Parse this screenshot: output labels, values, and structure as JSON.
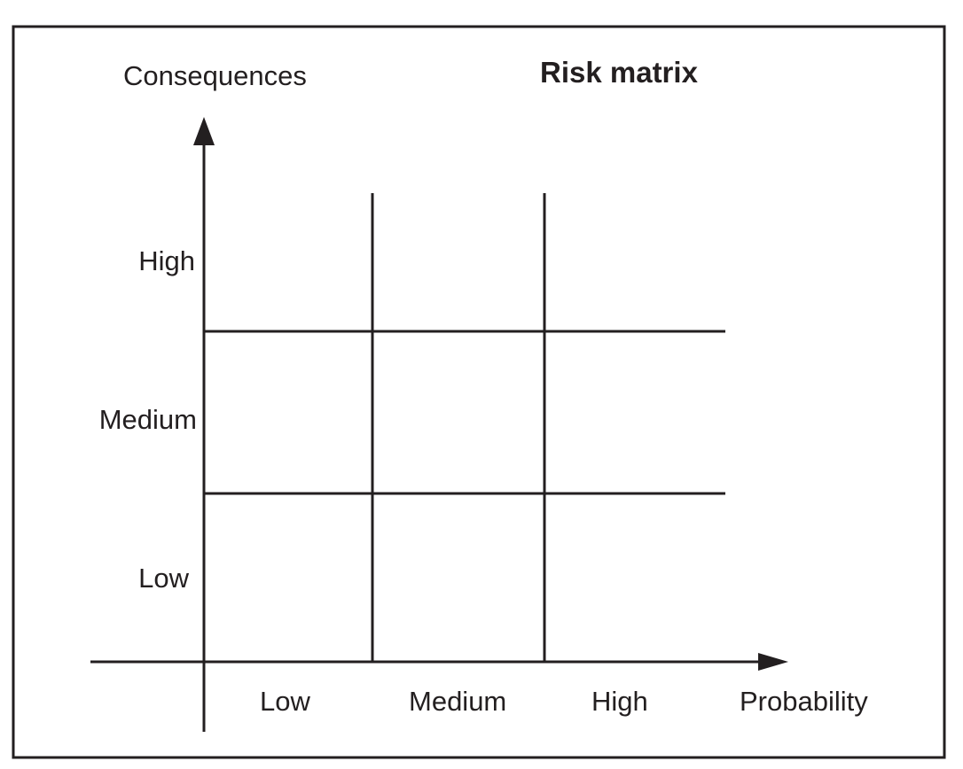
{
  "title": "Risk matrix",
  "y_axis": {
    "label": "Consequences",
    "levels": [
      "Low",
      "Medium",
      "High"
    ]
  },
  "x_axis": {
    "label": "Probability",
    "levels": [
      "Low",
      "Medium",
      "High"
    ]
  },
  "colors": {
    "line": "#231f20",
    "background": "#ffffff"
  }
}
